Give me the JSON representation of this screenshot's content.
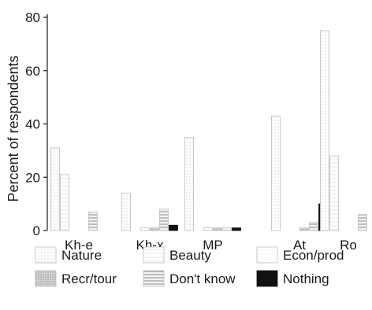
{
  "chart_data": {
    "type": "bar",
    "title": "",
    "xlabel": "",
    "ylabel": "Percent of respondents",
    "ylim": [
      0,
      80
    ],
    "yticks": [
      0,
      20,
      40,
      60,
      80
    ],
    "categories": [
      "Kh-e",
      "Kh-x",
      "MP",
      "At",
      "Ro"
    ],
    "series": [
      {
        "name": "Nature",
        "values": [
          31,
          14,
          35,
          43,
          75
        ],
        "pattern": "dots-light"
      },
      {
        "name": "Beauty",
        "values": [
          21,
          0,
          0,
          0,
          28
        ],
        "pattern": "lines-faint"
      },
      {
        "name": "Econ/prod",
        "values": [
          0,
          1,
          1,
          0,
          0
        ],
        "pattern": "speckle"
      },
      {
        "name": "Recr/tour",
        "values": [
          0,
          1,
          1,
          1,
          0
        ],
        "pattern": "dots-dense"
      },
      {
        "name": "Don't know",
        "values": [
          7,
          8,
          1,
          3,
          6
        ],
        "pattern": "stripes"
      },
      {
        "name": "Nothing",
        "values": [
          0,
          2,
          1,
          10,
          0
        ],
        "pattern": "solid"
      }
    ],
    "grid": false,
    "legend_placement": "bottom",
    "colors": {
      "axis": "#1a1a1a",
      "bar_outline": "#bdbdbd",
      "nothing_fill": "#111111"
    }
  }
}
